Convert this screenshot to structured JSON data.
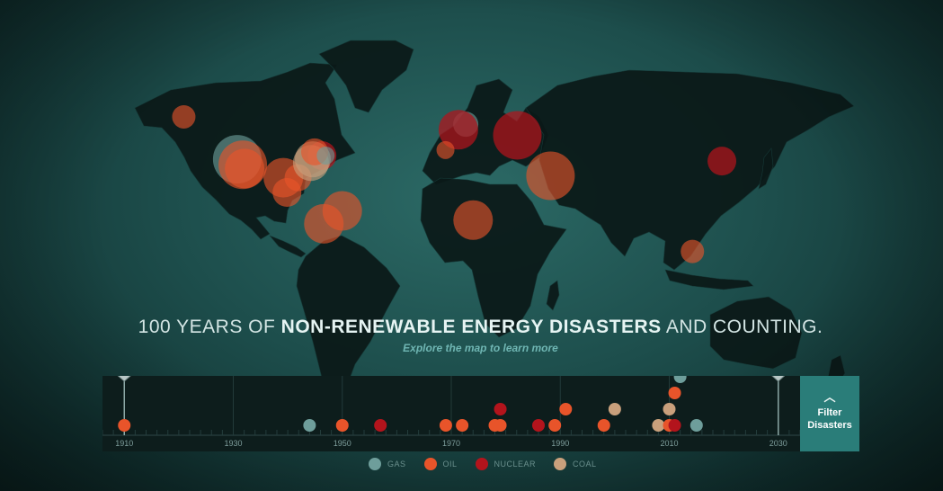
{
  "title": {
    "prefix": "100 YEARS OF ",
    "bold": "NON-RENEWABLE ENERGY DISASTERS",
    "suffix": " AND COUNTING.",
    "subtitle": "Explore the map to learn more"
  },
  "colors": {
    "gas": "#6e9e9b",
    "oil": "#e8542a",
    "nuclear": "#b3141c",
    "coal": "#c9a07c"
  },
  "legend": [
    {
      "type": "gas",
      "label": "GAS"
    },
    {
      "type": "oil",
      "label": "OIL"
    },
    {
      "type": "nuclear",
      "label": "NUCLEAR"
    },
    {
      "type": "coal",
      "label": "COAL"
    }
  ],
  "filter_button": {
    "icon": "chevron-up-icon",
    "label_line1": "Filter",
    "label_line2": "Disasters"
  },
  "timeline": {
    "ticks": [
      "1910",
      "1930",
      "1950",
      "1970",
      "1990",
      "2010",
      "2030"
    ],
    "range": [
      1906,
      2034
    ],
    "range_handles": {
      "start": 1910,
      "end": 2030
    },
    "events": [
      {
        "year": 1910,
        "type": "oil",
        "row": 0
      },
      {
        "year": 1944,
        "type": "gas",
        "row": 0
      },
      {
        "year": 1950,
        "type": "oil",
        "row": 0
      },
      {
        "year": 1957,
        "type": "nuclear",
        "row": 0
      },
      {
        "year": 1969,
        "type": "oil",
        "row": 0
      },
      {
        "year": 1972,
        "type": "oil",
        "row": 0
      },
      {
        "year": 1978,
        "type": "oil",
        "row": 0
      },
      {
        "year": 1979,
        "type": "oil",
        "row": 0
      },
      {
        "year": 1979,
        "type": "nuclear",
        "row": 1
      },
      {
        "year": 1986,
        "type": "nuclear",
        "row": 0
      },
      {
        "year": 1989,
        "type": "oil",
        "row": 0
      },
      {
        "year": 1991,
        "type": "oil",
        "row": 1
      },
      {
        "year": 1998,
        "type": "oil",
        "row": 0
      },
      {
        "year": 2000,
        "type": "coal",
        "row": 1
      },
      {
        "year": 2008,
        "type": "coal",
        "row": 0
      },
      {
        "year": 2010,
        "type": "coal",
        "row": 1
      },
      {
        "year": 2010,
        "type": "oil",
        "row": 0
      },
      {
        "year": 2011,
        "type": "nuclear",
        "row": 0
      },
      {
        "year": 2011,
        "type": "oil",
        "row": 2
      },
      {
        "year": 2012,
        "type": "gas",
        "row": 3
      },
      {
        "year": 2015,
        "type": "gas",
        "row": 0
      }
    ]
  },
  "map_markers": [
    {
      "name": "alaska",
      "lon": -151,
      "lat": 61,
      "size": 13,
      "type": "oil"
    },
    {
      "name": "san-francisco-gas",
      "lon": -122,
      "lat": 38,
      "size": 27,
      "type": "gas"
    },
    {
      "name": "california-oil",
      "lon": -119,
      "lat": 35,
      "size": 27,
      "type": "oil"
    },
    {
      "name": "california-oil-2",
      "lon": -118,
      "lat": 33,
      "size": 22,
      "type": "oil"
    },
    {
      "name": "texas",
      "lon": -97,
      "lat": 28,
      "size": 22,
      "type": "oil"
    },
    {
      "name": "gulf-oil",
      "lon": -89,
      "lat": 28,
      "size": 15,
      "type": "oil"
    },
    {
      "name": "mexico",
      "lon": -95,
      "lat": 20,
      "size": 16,
      "type": "oil"
    },
    {
      "name": "three-mile-island",
      "lon": -76,
      "lat": 40,
      "size": 16,
      "type": "nuclear"
    },
    {
      "name": "west-virginia-coal",
      "lon": -81,
      "lat": 38,
      "size": 20,
      "type": "coal"
    },
    {
      "name": "appalachia-coal",
      "lon": -82,
      "lat": 36,
      "size": 20,
      "type": "coal"
    },
    {
      "name": "pennsylvania",
      "lon": -80,
      "lat": 42,
      "size": 15,
      "type": "oil"
    },
    {
      "name": "new-york-gas",
      "lon": -74,
      "lat": 40,
      "size": 10,
      "type": "gas"
    },
    {
      "name": "venezuela",
      "lon": -65,
      "lat": 10,
      "size": 22,
      "type": "oil"
    },
    {
      "name": "colombia",
      "lon": -75,
      "lat": 3,
      "size": 22,
      "type": "oil"
    },
    {
      "name": "north-sea-gas",
      "lon": 2,
      "lat": 57,
      "size": 14,
      "type": "gas"
    },
    {
      "name": "uk-nuclear",
      "lon": -2,
      "lat": 54,
      "size": 22,
      "type": "nuclear"
    },
    {
      "name": "spain",
      "lon": -9,
      "lat": 43,
      "size": 10,
      "type": "oil"
    },
    {
      "name": "chernobyl",
      "lon": 30,
      "lat": 51,
      "size": 27,
      "type": "nuclear"
    },
    {
      "name": "persian-gulf",
      "lon": 48,
      "lat": 29,
      "size": 27,
      "type": "oil"
    },
    {
      "name": "nigeria",
      "lon": 6,
      "lat": 5,
      "size": 22,
      "type": "oil"
    },
    {
      "name": "fukushima",
      "lon": 141,
      "lat": 37,
      "size": 16,
      "type": "nuclear"
    },
    {
      "name": "australia",
      "lon": 125,
      "lat": -12,
      "size": 13,
      "type": "oil"
    }
  ]
}
